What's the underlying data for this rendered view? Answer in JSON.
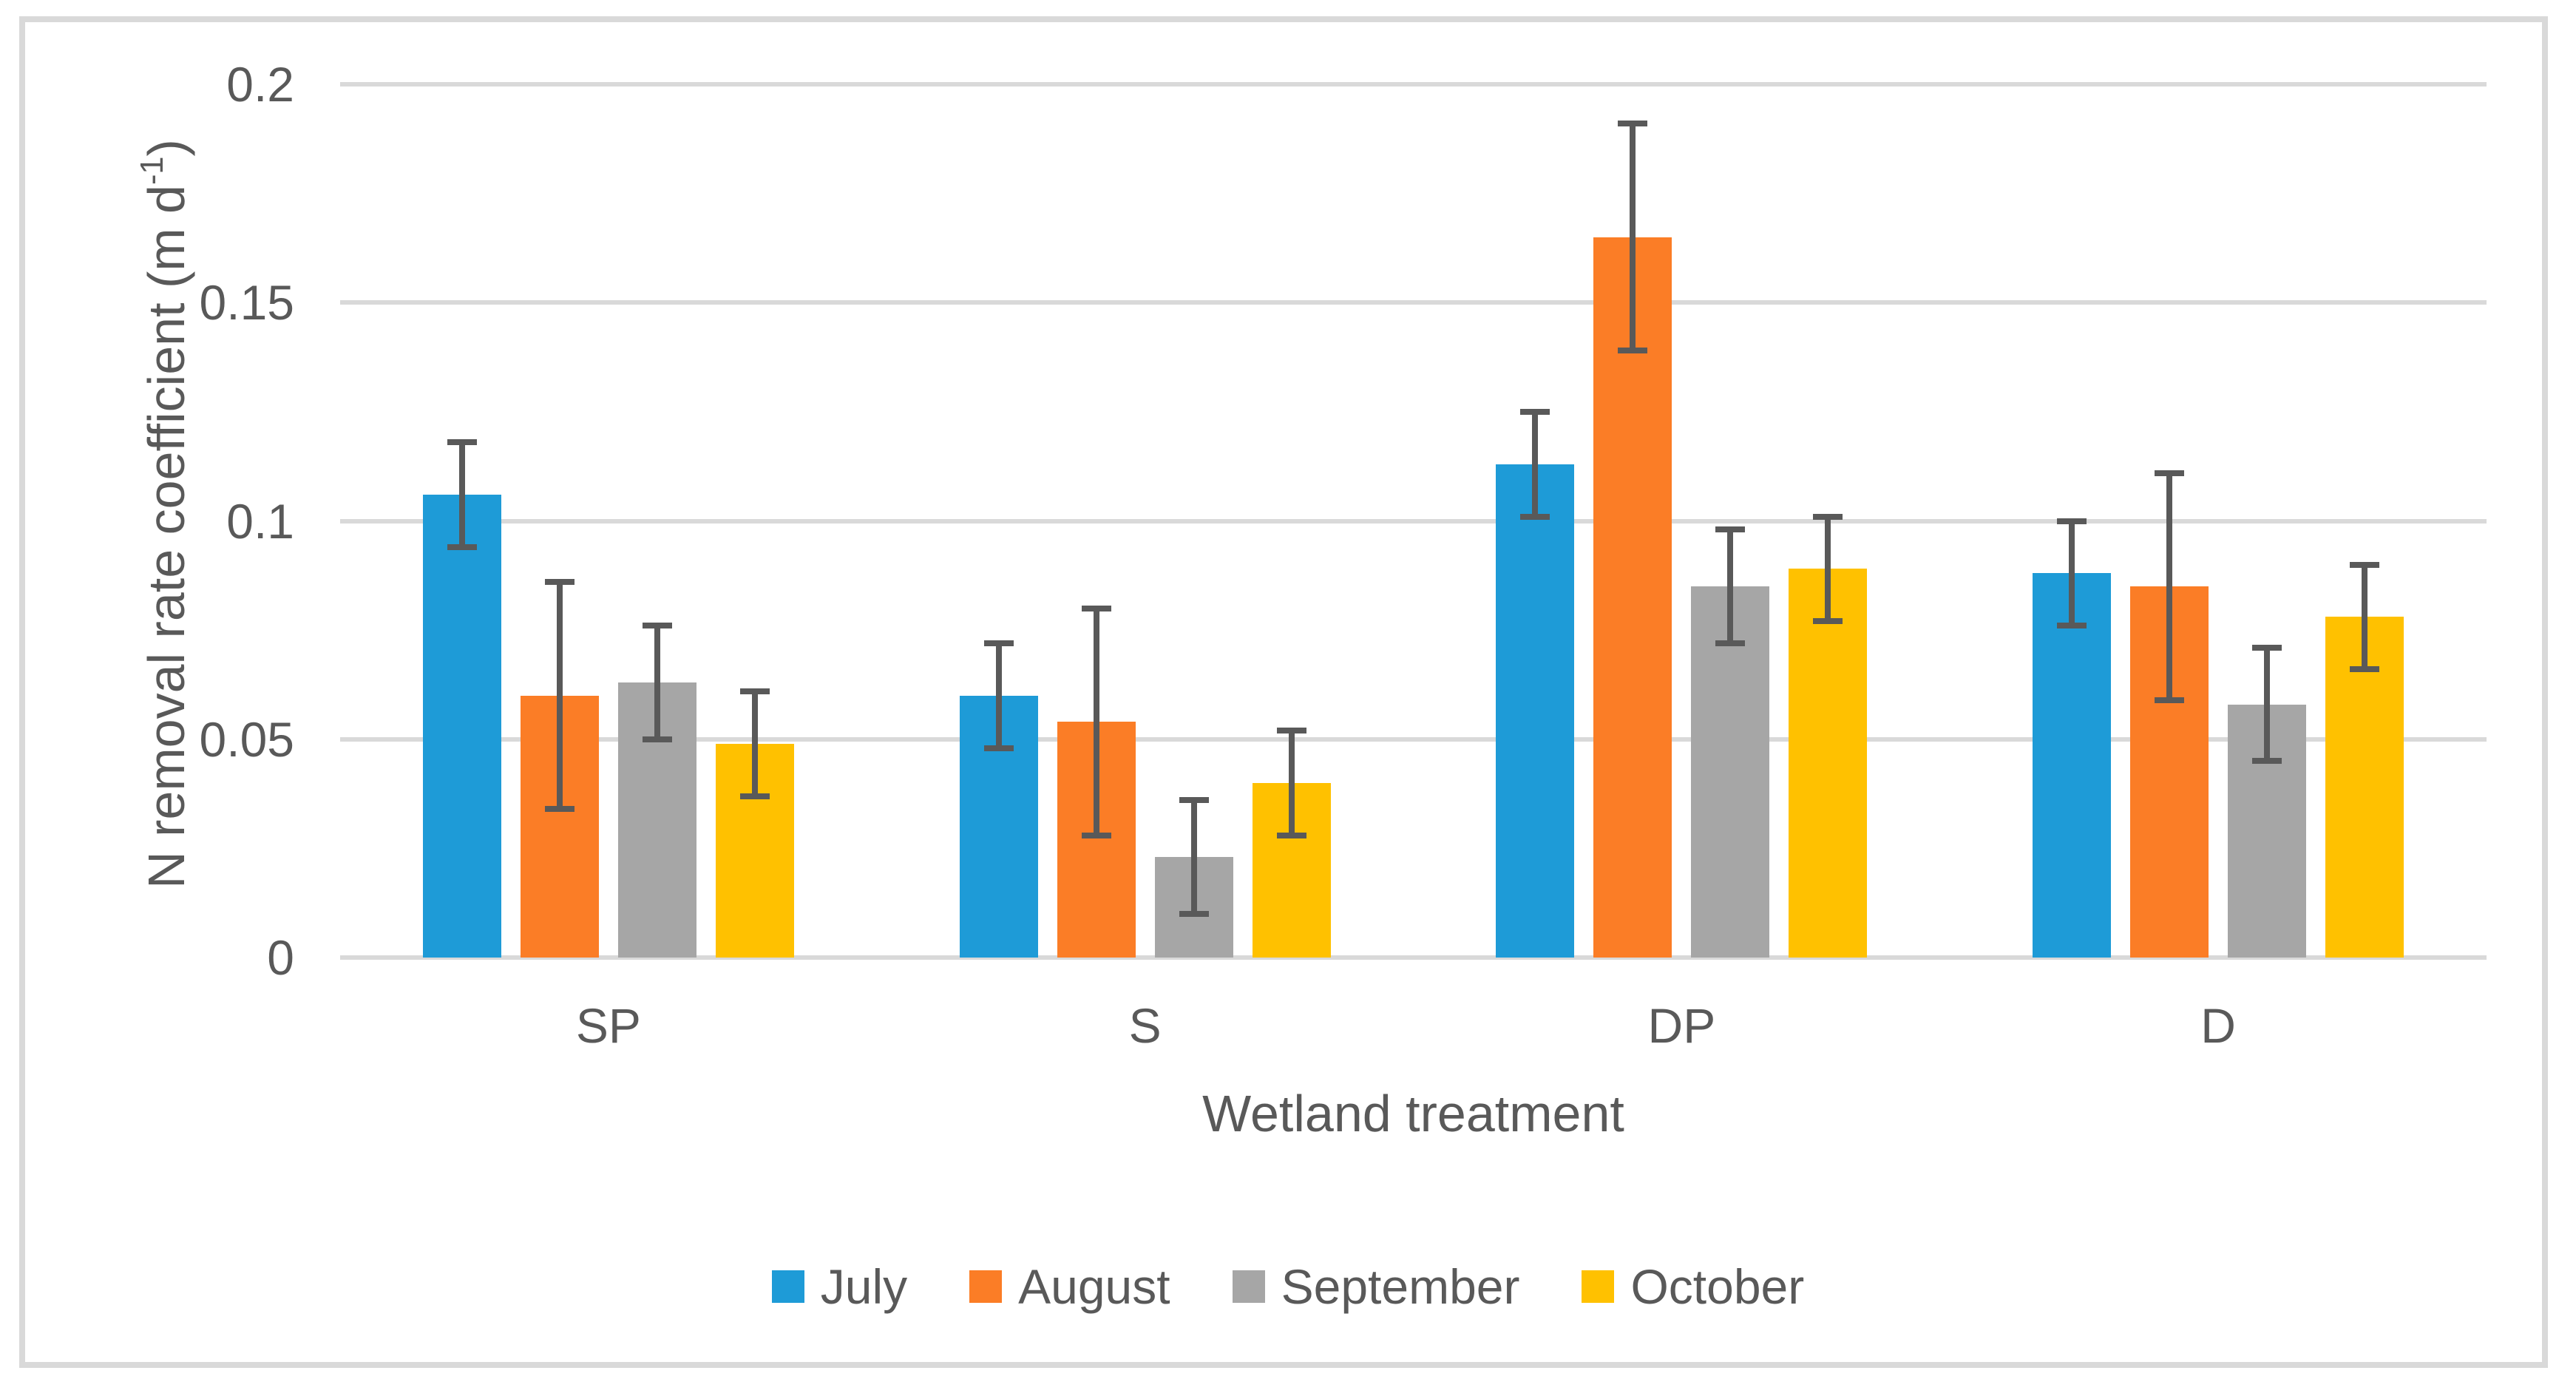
{
  "figure": {
    "background": "#ffffff",
    "border_color": "#d9d9d9",
    "text_color": "#595959"
  },
  "axes": {
    "y_title": {
      "prefix": "N removal rate coefficient (m d",
      "superscript": "-1",
      "suffix": ")"
    },
    "x_title": "Wetland treatment"
  },
  "chart_data": {
    "type": "bar",
    "title": "",
    "xlabel": "Wetland treatment",
    "ylabel": "N removal rate coefficient (m d-1)",
    "categories": [
      "SP",
      "S",
      "DP",
      "D"
    ],
    "series": [
      {
        "name": "July",
        "color": "#1e9bd7",
        "values": [
          0.106,
          0.06,
          0.113,
          0.088
        ],
        "errors": [
          0.012,
          0.012,
          0.012,
          0.012
        ]
      },
      {
        "name": "August",
        "color": "#fb7d26",
        "values": [
          0.06,
          0.054,
          0.165,
          0.085
        ],
        "errors": [
          0.026,
          0.026,
          0.026,
          0.026
        ]
      },
      {
        "name": "September",
        "color": "#a6a6a6",
        "values": [
          0.063,
          0.023,
          0.085,
          0.058
        ],
        "errors": [
          0.013,
          0.013,
          0.013,
          0.013
        ]
      },
      {
        "name": "October",
        "color": "#ffc100",
        "values": [
          0.049,
          0.04,
          0.089,
          0.078
        ],
        "errors": [
          0.012,
          0.012,
          0.012,
          0.012
        ]
      }
    ],
    "ylim": [
      0,
      0.2
    ],
    "yticks": [
      0,
      0.05,
      0.1,
      0.15,
      0.2
    ],
    "ytick_labels": [
      "0",
      "0.05",
      "0.1",
      "0.15",
      "0.2"
    ],
    "grid": "horizontal",
    "gridline_color": "#d9d9d9",
    "error_bar_color": "#595959",
    "legend_position": "bottom",
    "legend_labels": [
      "July",
      "August",
      "September",
      "October"
    ]
  }
}
